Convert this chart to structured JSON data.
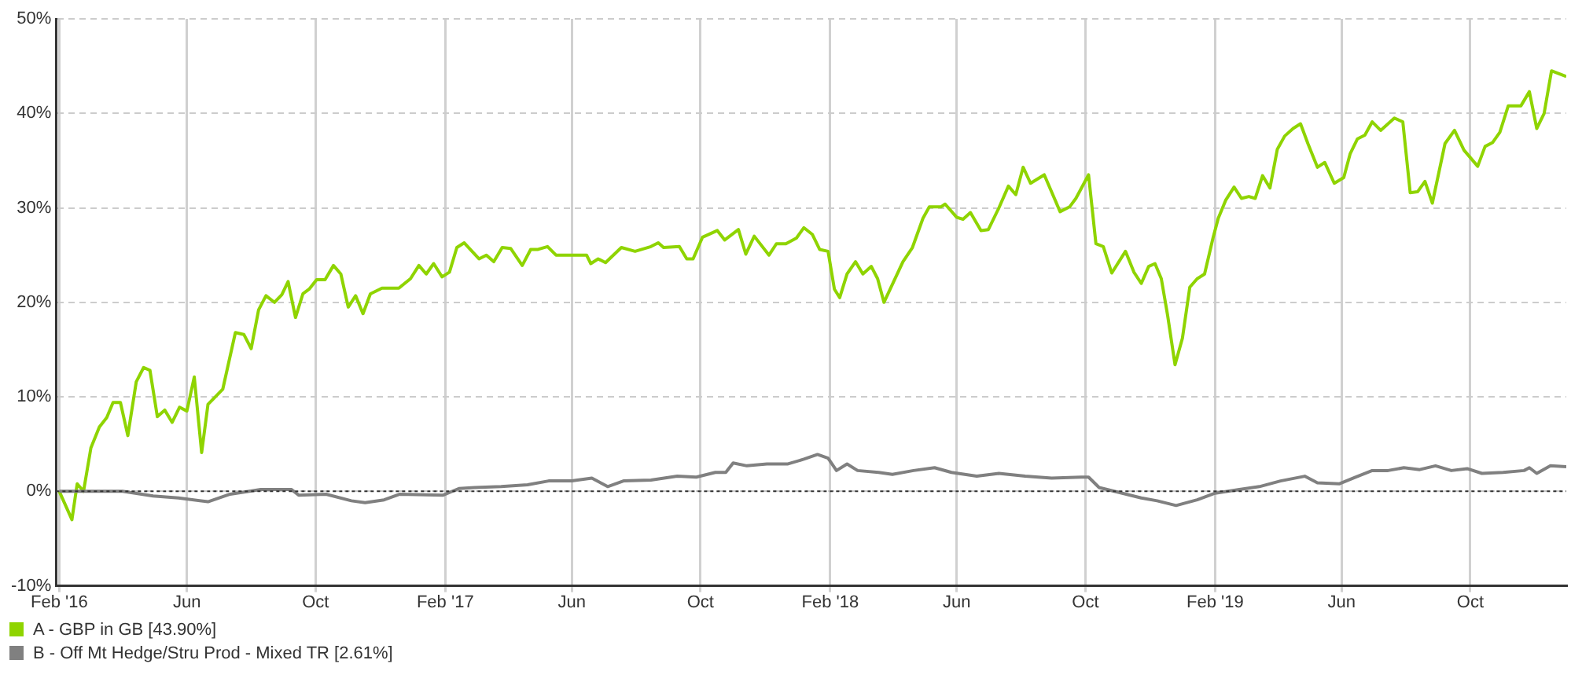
{
  "chart_data": {
    "type": "line",
    "xlim": [
      "2016-01-29",
      "2019-12-31"
    ],
    "xticks": [
      {
        "value": "2016-02-01",
        "label": "Feb '16"
      },
      {
        "value": "2016-06-01",
        "label": "Jun"
      },
      {
        "value": "2016-10-01",
        "label": "Oct"
      },
      {
        "value": "2017-02-01",
        "label": "Feb '17"
      },
      {
        "value": "2017-06-01",
        "label": "Jun"
      },
      {
        "value": "2017-10-01",
        "label": "Oct"
      },
      {
        "value": "2018-02-01",
        "label": "Feb '18"
      },
      {
        "value": "2018-06-01",
        "label": "Jun"
      },
      {
        "value": "2018-10-01",
        "label": "Oct"
      },
      {
        "value": "2019-02-01",
        "label": "Feb '19"
      },
      {
        "value": "2019-06-01",
        "label": "Jun"
      },
      {
        "value": "2019-10-01",
        "label": "Oct"
      }
    ],
    "ylim": [
      -10,
      50
    ],
    "yticks": [
      {
        "value": -10,
        "label": "-10%"
      },
      {
        "value": 0,
        "label": "0%"
      },
      {
        "value": 10,
        "label": "10%"
      },
      {
        "value": 20,
        "label": "20%"
      },
      {
        "value": 30,
        "label": "30%"
      },
      {
        "value": 40,
        "label": "40%"
      },
      {
        "value": 50,
        "label": "50%"
      }
    ],
    "grid": true,
    "legend": "bottom left",
    "marker": "none",
    "line_style": "solid",
    "ref_lines": [
      {
        "axis": "y",
        "value": 0,
        "color": "#333333",
        "line_style": "dotted"
      }
    ],
    "series": [
      {
        "name": "A - GBP in GB [43.90%]",
        "color": "#8fd400",
        "x": [
          "2016-02-01",
          "2016-02-13",
          "2016-02-18",
          "2016-02-24",
          "2016-03-02",
          "2016-03-10",
          "2016-03-17",
          "2016-03-23",
          "2016-03-30",
          "2016-04-06",
          "2016-04-14",
          "2016-04-21",
          "2016-04-27",
          "2016-05-04",
          "2016-05-11",
          "2016-05-18",
          "2016-05-25",
          "2016-06-01",
          "2016-06-08",
          "2016-06-15",
          "2016-06-21",
          "2016-07-05",
          "2016-07-17",
          "2016-07-25",
          "2016-08-01",
          "2016-08-08",
          "2016-08-15",
          "2016-08-23",
          "2016-08-30",
          "2016-09-05",
          "2016-09-12",
          "2016-09-19",
          "2016-09-25",
          "2016-10-02",
          "2016-10-10",
          "2016-10-18",
          "2016-10-25",
          "2016-11-01",
          "2016-11-08",
          "2016-11-15",
          "2016-11-22",
          "2016-12-03",
          "2016-12-19",
          "2016-12-30",
          "2017-01-07",
          "2017-01-14",
          "2017-01-21",
          "2017-01-29",
          "2017-02-05",
          "2017-02-12",
          "2017-02-19",
          "2017-03-05",
          "2017-03-12",
          "2017-03-19",
          "2017-03-27",
          "2017-04-04",
          "2017-04-15",
          "2017-04-23",
          "2017-04-30",
          "2017-05-09",
          "2017-05-17",
          "2017-06-01",
          "2017-06-15",
          "2017-06-19",
          "2017-06-26",
          "2017-07-03",
          "2017-07-18",
          "2017-07-31",
          "2017-08-15",
          "2017-08-22",
          "2017-08-27",
          "2017-09-11",
          "2017-09-18",
          "2017-09-24",
          "2017-10-03",
          "2017-10-17",
          "2017-10-24",
          "2017-11-06",
          "2017-11-13",
          "2017-11-21",
          "2017-12-05",
          "2017-12-12",
          "2017-12-21",
          "2017-12-31",
          "2018-01-07",
          "2018-01-15",
          "2018-01-22",
          "2018-01-30",
          "2018-02-05",
          "2018-02-10",
          "2018-02-17",
          "2018-02-25",
          "2018-03-04",
          "2018-03-12",
          "2018-03-18",
          "2018-03-24",
          "2018-04-01",
          "2018-04-11",
          "2018-04-20",
          "2018-04-30",
          "2018-05-06",
          "2018-05-17",
          "2018-05-21",
          "2018-06-01",
          "2018-06-07",
          "2018-06-14",
          "2018-06-24",
          "2018-07-01",
          "2018-07-11",
          "2018-07-20",
          "2018-07-27",
          "2018-08-03",
          "2018-08-10",
          "2018-08-23",
          "2018-09-07",
          "2018-09-16",
          "2018-09-22",
          "2018-10-04",
          "2018-10-11",
          "2018-10-18",
          "2018-10-26",
          "2018-11-08",
          "2018-11-16",
          "2018-11-23",
          "2018-11-30",
          "2018-12-06",
          "2018-12-12",
          "2018-12-18",
          "2018-12-25",
          "2019-01-01",
          "2019-01-08",
          "2019-01-15",
          "2019-01-22",
          "2019-01-30",
          "2019-02-04",
          "2019-02-11",
          "2019-02-19",
          "2019-02-26",
          "2019-03-05",
          "2019-03-11",
          "2019-03-18",
          "2019-03-25",
          "2019-04-01",
          "2019-04-08",
          "2019-04-16",
          "2019-04-23",
          "2019-04-30",
          "2019-05-09",
          "2019-05-16",
          "2019-05-25",
          "2019-06-03",
          "2019-06-09",
          "2019-06-16",
          "2019-06-23",
          "2019-06-30",
          "2019-07-08",
          "2019-07-21",
          "2019-07-29",
          "2019-08-05",
          "2019-08-12",
          "2019-08-19",
          "2019-08-26",
          "2019-09-07",
          "2019-09-16",
          "2019-09-25",
          "2019-10-08",
          "2019-10-15",
          "2019-10-22",
          "2019-10-29",
          "2019-11-06",
          "2019-11-18",
          "2019-11-26",
          "2019-12-03",
          "2019-12-10",
          "2019-12-17",
          "2019-12-31"
        ],
        "values": [
          0,
          -3.0,
          0.8,
          0,
          4.6,
          6.8,
          7.8,
          9.4,
          9.4,
          5.9,
          11.6,
          13.1,
          12.8,
          7.9,
          8.6,
          7.3,
          8.9,
          8.5,
          12.1,
          4.1,
          9.2,
          10.8,
          16.8,
          16.6,
          15.1,
          19.2,
          20.7,
          20.0,
          20.8,
          22.2,
          18.4,
          20.9,
          21.4,
          22.4,
          22.4,
          23.9,
          23.0,
          19.5,
          20.7,
          18.8,
          20.9,
          21.5,
          21.5,
          22.5,
          23.9,
          23.0,
          24.1,
          22.7,
          23.2,
          25.8,
          26.3,
          24.6,
          25.0,
          24.3,
          25.8,
          25.7,
          23.9,
          25.6,
          25.6,
          25.9,
          25.0,
          25.0,
          25.0,
          24.1,
          24.6,
          24.2,
          25.8,
          25.4,
          25.9,
          26.3,
          25.8,
          25.9,
          24.6,
          24.6,
          26.9,
          27.6,
          26.6,
          27.7,
          25.1,
          27.0,
          25.0,
          26.2,
          26.2,
          26.8,
          27.9,
          27.2,
          25.6,
          25.4,
          21.4,
          20.5,
          23.0,
          24.3,
          23.0,
          23.8,
          22.5,
          20.0,
          21.9,
          24.3,
          25.8,
          28.9,
          30.1,
          30.1,
          30.4,
          29.0,
          28.8,
          29.5,
          27.6,
          27.7,
          30.0,
          32.3,
          31.4,
          34.3,
          32.6,
          33.5,
          29.6,
          30.1,
          31.0,
          33.5,
          26.2,
          25.9,
          23.1,
          25.4,
          23.2,
          22.0,
          23.8,
          24.1,
          22.5,
          18.6,
          13.4,
          16.2,
          21.6,
          22.5,
          23.0,
          26.8,
          28.9,
          30.8,
          32.2,
          31.0,
          31.2,
          31.0,
          33.4,
          32.1,
          36.2,
          37.6,
          38.4,
          38.9,
          36.8,
          34.3,
          34.8,
          32.6,
          33.2,
          35.7,
          37.3,
          37.7,
          39.1,
          38.2,
          39.5,
          39.1,
          31.6,
          31.7,
          32.8,
          30.5,
          36.8,
          38.2,
          36.1,
          34.4,
          36.5,
          36.9,
          38.0,
          40.8,
          40.8,
          42.3,
          38.4,
          40.0,
          44.5,
          43.9
        ]
      },
      {
        "name": "B - Off Mt Hedge/Stru Prod - Mixed TR [2.61%]",
        "color": "#808080",
        "x": [
          "2016-02-01",
          "2016-04-01",
          "2016-04-30",
          "2016-05-24",
          "2016-06-21",
          "2016-07-12",
          "2016-08-10",
          "2016-09-08",
          "2016-09-15",
          "2016-10-11",
          "2016-11-04",
          "2016-11-17",
          "2016-12-05",
          "2016-12-20",
          "2017-01-30",
          "2017-02-14",
          "2017-03-01",
          "2017-03-26",
          "2017-04-20",
          "2017-05-10",
          "2017-06-01",
          "2017-06-20",
          "2017-07-05",
          "2017-07-20",
          "2017-08-15",
          "2017-09-09",
          "2017-09-27",
          "2017-10-15",
          "2017-10-25",
          "2017-11-01",
          "2017-11-14",
          "2017-12-03",
          "2017-12-23",
          "2018-01-07",
          "2018-01-20",
          "2018-01-30",
          "2018-02-07",
          "2018-02-17",
          "2018-02-27",
          "2018-03-19",
          "2018-04-01",
          "2018-04-21",
          "2018-05-11",
          "2018-05-27",
          "2018-06-20",
          "2018-07-11",
          "2018-08-05",
          "2018-08-30",
          "2018-09-27",
          "2018-10-04",
          "2018-10-14",
          "2018-11-05",
          "2018-11-23",
          "2018-12-08",
          "2018-12-26",
          "2019-01-15",
          "2019-02-01",
          "2019-02-24",
          "2019-03-15",
          "2019-04-04",
          "2019-04-27",
          "2019-05-09",
          "2019-05-30",
          "2019-06-14",
          "2019-06-30",
          "2019-07-15",
          "2019-07-30",
          "2019-08-14",
          "2019-08-29",
          "2019-09-13",
          "2019-09-28",
          "2019-10-12",
          "2019-11-01",
          "2019-11-21",
          "2019-11-26",
          "2019-12-03",
          "2019-12-16",
          "2019-12-31"
        ],
        "values": [
          0,
          0,
          -0.5,
          -0.7,
          -1.1,
          -0.3,
          0.2,
          0.2,
          -0.4,
          -0.3,
          -1.0,
          -1.2,
          -0.9,
          -0.3,
          -0.4,
          0.3,
          0.4,
          0.5,
          0.7,
          1.1,
          1.1,
          1.4,
          0.5,
          1.1,
          1.2,
          1.6,
          1.5,
          2.0,
          2.0,
          3.0,
          2.7,
          2.9,
          2.9,
          3.4,
          3.9,
          3.5,
          2.2,
          2.9,
          2.2,
          2.0,
          1.8,
          2.2,
          2.5,
          2.0,
          1.6,
          1.9,
          1.6,
          1.4,
          1.5,
          1.5,
          0.4,
          -0.2,
          -0.7,
          -1.0,
          -1.5,
          -0.9,
          -0.2,
          0.2,
          0.5,
          1.1,
          1.6,
          0.9,
          0.8,
          1.5,
          2.2,
          2.2,
          2.5,
          2.3,
          2.7,
          2.2,
          2.4,
          1.9,
          2.0,
          2.2,
          2.5,
          1.9,
          2.7,
          2.61
        ]
      }
    ]
  }
}
